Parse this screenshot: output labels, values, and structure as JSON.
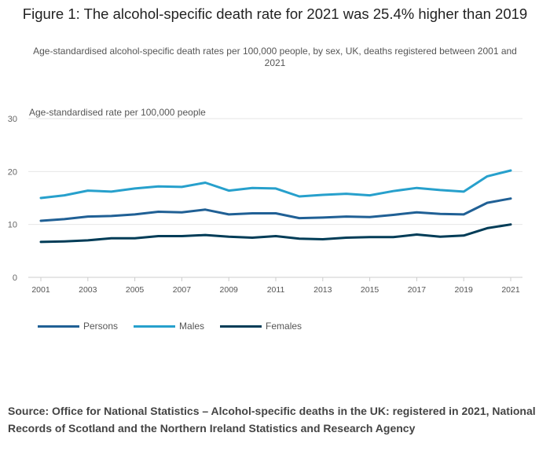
{
  "header": {
    "title": "Figure 1: The alcohol-specific death rate for 2021 was 25.4% higher than 2019",
    "subtitle": "Age-standardised alcohol-specific death rates per 100,000 people, by sex, UK, deaths registered between 2001 and 2021"
  },
  "chart_data": {
    "type": "line",
    "title": "Figure 1: The alcohol-specific death rate for 2021 was 25.4% higher than 2019",
    "subtitle": "Age-standardised alcohol-specific death rates per 100,000 people, by sex, UK, deaths registered between 2001 and 2021",
    "ylabel": "Age-standardised rate per 100,000 people",
    "xlabel": "",
    "ylim": [
      0,
      30
    ],
    "yticks": [
      "0",
      "10",
      "20",
      "30"
    ],
    "x": [
      2001,
      2002,
      2003,
      2004,
      2005,
      2006,
      2007,
      2008,
      2009,
      2010,
      2011,
      2012,
      2013,
      2014,
      2015,
      2016,
      2017,
      2018,
      2019,
      2020,
      2021
    ],
    "xticks": [
      "2001",
      "2003",
      "2005",
      "2007",
      "2009",
      "2011",
      "2013",
      "2015",
      "2017",
      "2019",
      "2021"
    ],
    "grid": true,
    "legend_position": "bottom-left",
    "series": [
      {
        "name": "Persons",
        "color": "#206095",
        "values": [
          10.7,
          11.0,
          11.5,
          11.6,
          11.9,
          12.4,
          12.3,
          12.8,
          11.9,
          12.1,
          12.1,
          11.2,
          11.3,
          11.5,
          11.4,
          11.8,
          12.3,
          12.0,
          11.9,
          14.1,
          14.9
        ]
      },
      {
        "name": "Males",
        "color": "#27a0cc",
        "values": [
          15.0,
          15.5,
          16.4,
          16.2,
          16.8,
          17.2,
          17.1,
          17.9,
          16.4,
          16.9,
          16.8,
          15.3,
          15.6,
          15.8,
          15.5,
          16.3,
          16.9,
          16.5,
          16.2,
          19.1,
          20.2
        ]
      },
      {
        "name": "Females",
        "color": "#003c57",
        "values": [
          6.7,
          6.8,
          7.0,
          7.4,
          7.4,
          7.8,
          7.8,
          8.0,
          7.7,
          7.5,
          7.8,
          7.3,
          7.2,
          7.5,
          7.6,
          7.6,
          8.1,
          7.7,
          7.9,
          9.3,
          10.0
        ]
      }
    ]
  },
  "footer": {
    "source": "Source: Office for National Statistics – Alcohol-specific deaths in the UK: registered in 2021, National Records of Scotland and the Northern Ireland Statistics and Research Agency"
  }
}
